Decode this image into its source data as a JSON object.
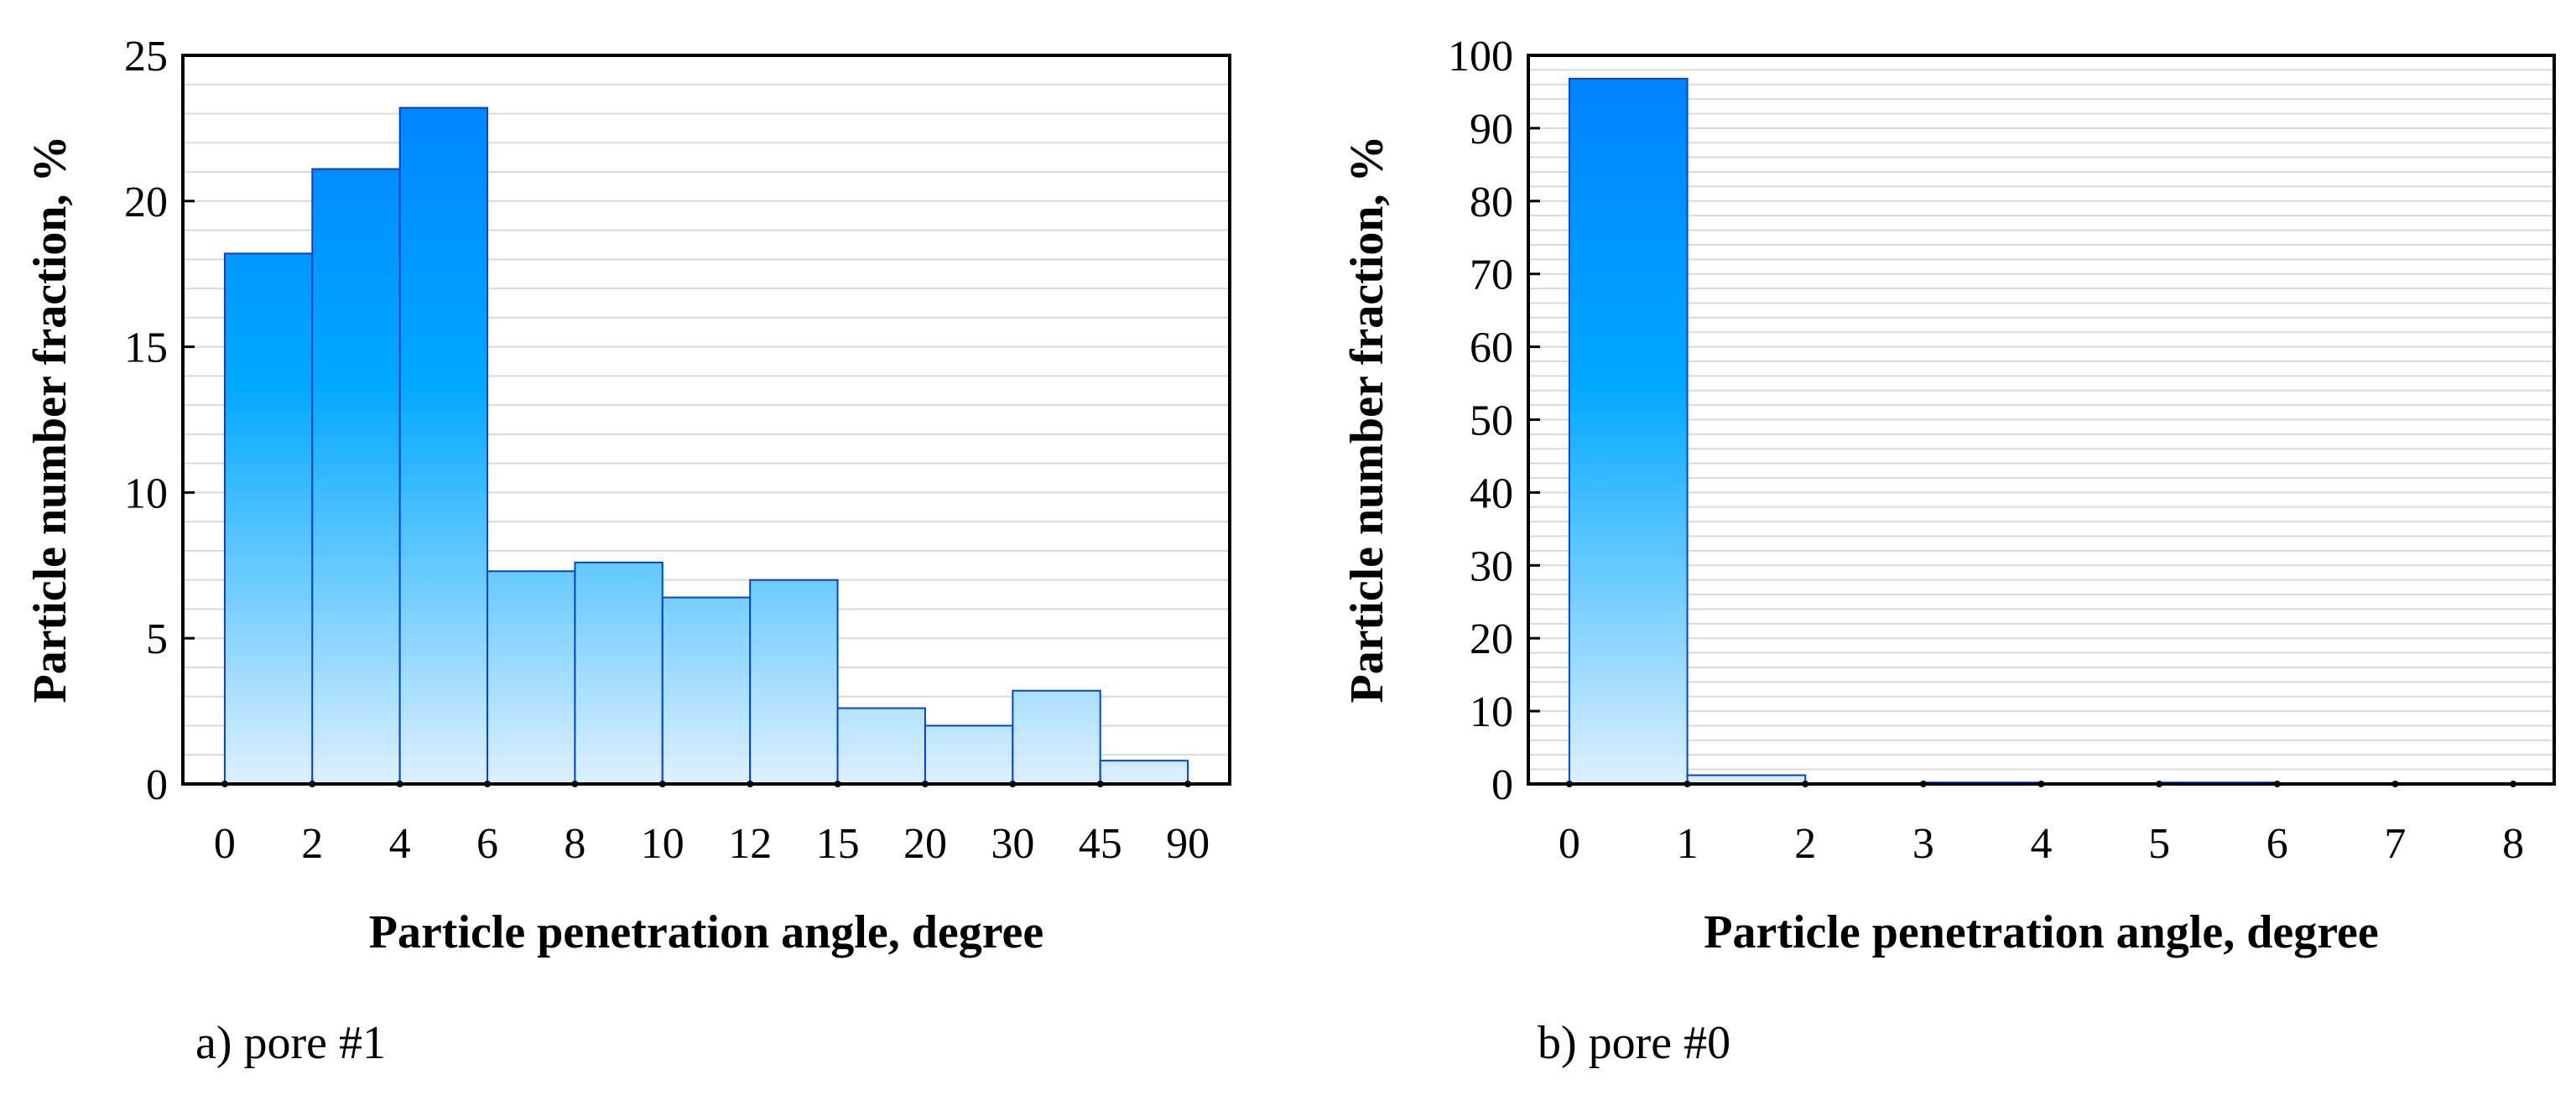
{
  "chart_data": [
    {
      "type": "bar",
      "panel_label": "a) pore #1",
      "xlabel": "Particle penetration angle, degree",
      "ylabel": "Particle number fraction, %",
      "bin_edges": [
        "0",
        "2",
        "4",
        "6",
        "8",
        "10",
        "12",
        "15",
        "20",
        "30",
        "45",
        "90"
      ],
      "values": [
        18.2,
        21.1,
        23.2,
        7.3,
        7.6,
        6.4,
        7.0,
        2.6,
        2.0,
        3.2,
        0.8
      ],
      "ylim": [
        0,
        25
      ],
      "yticks": [
        0,
        5,
        10,
        15,
        20,
        25
      ],
      "grid": true
    },
    {
      "type": "bar",
      "panel_label": "b) pore #0",
      "xlabel": "Particle penetration angle, degree",
      "ylabel": "Particle number fraction, %",
      "bin_edges": [
        "0",
        "1",
        "2",
        "3",
        "4",
        "5",
        "6",
        "7",
        "8"
      ],
      "values": [
        96.8,
        1.2,
        0,
        0.2,
        0,
        0.2,
        0,
        0
      ],
      "ylim": [
        0,
        100
      ],
      "yticks": [
        0,
        10,
        20,
        30,
        40,
        50,
        60,
        70,
        80,
        90,
        100
      ],
      "grid": true
    }
  ],
  "colors": {
    "bar_top": "#0080ff",
    "bar_mid": "#00a8ff",
    "bar_bottom": "#ddf0ff",
    "bar_stroke": "#0044cc",
    "grid": "#d9d9d9",
    "frame": "#000000"
  }
}
